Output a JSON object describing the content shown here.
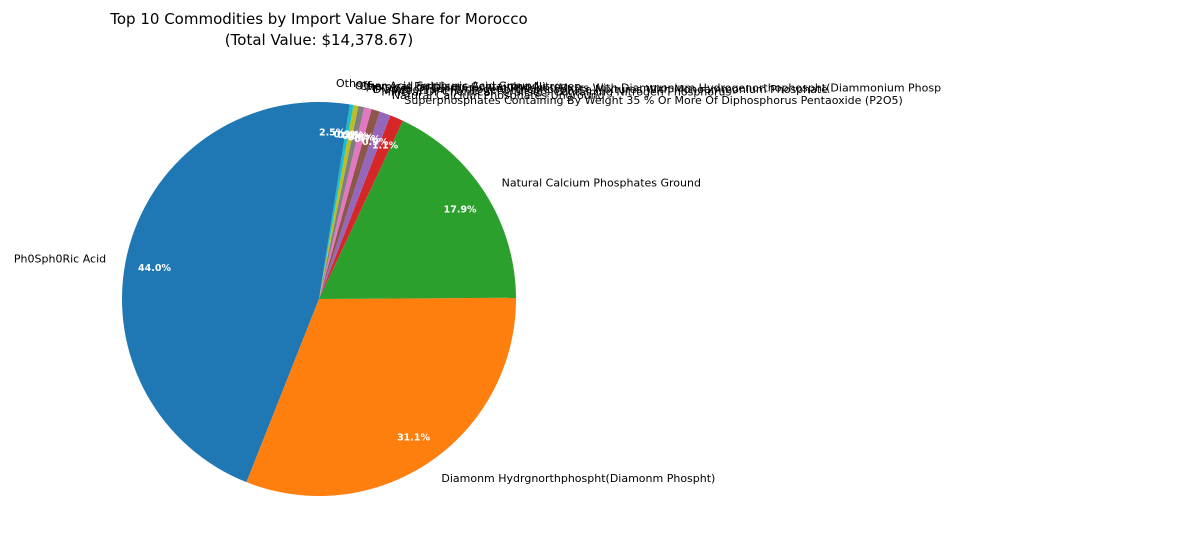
{
  "chart_data": {
    "type": "pie",
    "title": "Top 10 Commodities by Import Value Share for Morocco",
    "subtitle": "(Total Value: $14,378.67)",
    "start_angle_deg": 90,
    "direction": "counterclockwise",
    "slices": [
      {
        "label": "Ph0Sph0Ric Acid",
        "pct": 44.0,
        "pct_label": "44.0%",
        "color": "#1f77b4"
      },
      {
        "label": "Diamonm Hydrgnorthphospht(Diamonm Phospht)",
        "pct": 31.1,
        "pct_label": "31.1%",
        "color": "#ff7f0e"
      },
      {
        "label": "Natural Calcium Phosphates Ground",
        "pct": 17.9,
        "pct_label": "17.9%",
        "color": "#2ca02c"
      },
      {
        "label": "Superphosphates Containing By Weight 35 % Or More Of Diphosphorus Pentaoxide (P2O5)",
        "pct": 1.1,
        "pct_label": "1.1%",
        "color": "#d62728"
      },
      {
        "label": "Natural Calcium Phosphates Unground",
        "pct": 0.9,
        "pct_label": "0.9%",
        "color": "#9467bd"
      },
      {
        "label": "Mineral Or Chemical Fertilisers Containing Nitrogen Phosphorus",
        "pct": 0.7,
        "pct_label": "0.7%",
        "color": "#8c564b"
      },
      {
        "label": "Diammonium Hydrogenorthophosphate Mixtures With Monoammonium Phosphate",
        "pct": 0.6,
        "pct_label": "0.6%",
        "color": "#e377c2"
      },
      {
        "label": "Mixtures Of Diammonium Phospht(Mxtrs With Diammonium Hydrogenorthophospht(Diammonium Phosp",
        "pct": 0.5,
        "pct_label": "0.5%",
        "color": "#7f7f7f"
      },
      {
        "label": "Chemical Fertilisers Containing Nitrogen",
        "pct": 0.4,
        "pct_label": "0.4%",
        "color": "#bcbd22"
      },
      {
        "label": "Other Acid Sulphuric Acid Ground",
        "pct": 0.3,
        "pct_label": "0.3%",
        "color": "#17becf"
      },
      {
        "label": "Others",
        "pct": 2.5,
        "pct_label": "2.5%",
        "color": "#1f77b4"
      }
    ]
  }
}
